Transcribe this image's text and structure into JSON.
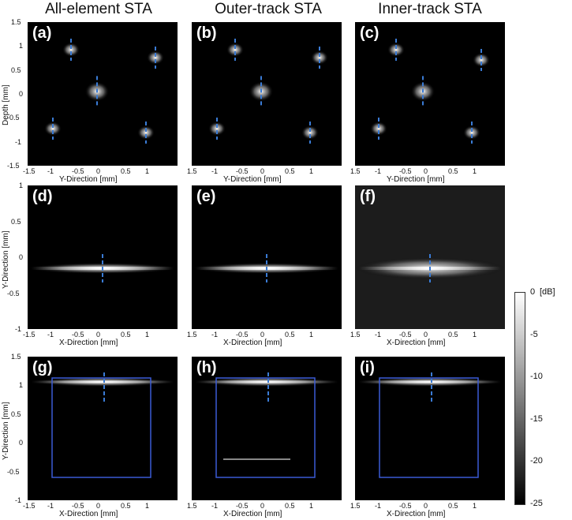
{
  "columns": [
    "All-element STA",
    "Outer-track STA",
    "Inner-track STA"
  ],
  "panels": [
    {
      "label": "(a)",
      "row": 0,
      "col": 0
    },
    {
      "label": "(b)",
      "row": 0,
      "col": 1
    },
    {
      "label": "(c)",
      "row": 0,
      "col": 2
    },
    {
      "label": "(d)",
      "row": 1,
      "col": 0
    },
    {
      "label": "(e)",
      "row": 1,
      "col": 1
    },
    {
      "label": "(f)",
      "row": 1,
      "col": 2
    },
    {
      "label": "(g)",
      "row": 2,
      "col": 0
    },
    {
      "label": "(h)",
      "row": 2,
      "col": 1
    },
    {
      "label": "(i)",
      "row": 2,
      "col": 2
    }
  ],
  "rows": [
    {
      "ylabel": "Depth [mm]",
      "xlabel": "Y-Direction [mm]",
      "yticks": [
        "1.5",
        "1",
        "0.5",
        "0",
        "-0.5",
        "-1",
        "-1.5"
      ],
      "xticks_first": [
        "-1.5",
        "-1",
        "-0.5",
        "0",
        "0.5",
        "1"
      ],
      "xticks_other": [
        "1.5",
        "-1",
        "-0.5",
        "0",
        "0.5",
        "1"
      ]
    },
    {
      "ylabel": "Y-Direction [mm]",
      "xlabel": "X-Direction [mm]",
      "yticks": [
        "1",
        "0.5",
        "0",
        "-0.5",
        "-1"
      ],
      "xticks_first": [
        "-1.5",
        "-1",
        "-0.5",
        "0",
        "0.5",
        "1"
      ],
      "xticks_other": [
        "1.5",
        "-1",
        "-0.5",
        "0",
        "0.5",
        "1"
      ]
    },
    {
      "ylabel": "Y-Direction [mm]",
      "xlabel": "X-Direction [mm]",
      "yticks": [
        "1.5",
        "1",
        "0.5",
        "0",
        "-0.5",
        "-1"
      ],
      "xticks_first": [
        "-1.5",
        "-1",
        "-0.5",
        "0",
        "0.5",
        "1"
      ],
      "xticks_other": [
        "1.5",
        "-1",
        "-0.5",
        "0",
        "0.5",
        "1"
      ]
    }
  ],
  "colorbar": {
    "unit": "[dB]",
    "ticks": [
      "0",
      "-5",
      "-10",
      "-15",
      "-20",
      "-25"
    ],
    "range": [
      -25,
      0
    ]
  },
  "colors": {
    "marker": "#3a7bd5",
    "box": "#3b5bd6",
    "background": "#000000"
  }
}
